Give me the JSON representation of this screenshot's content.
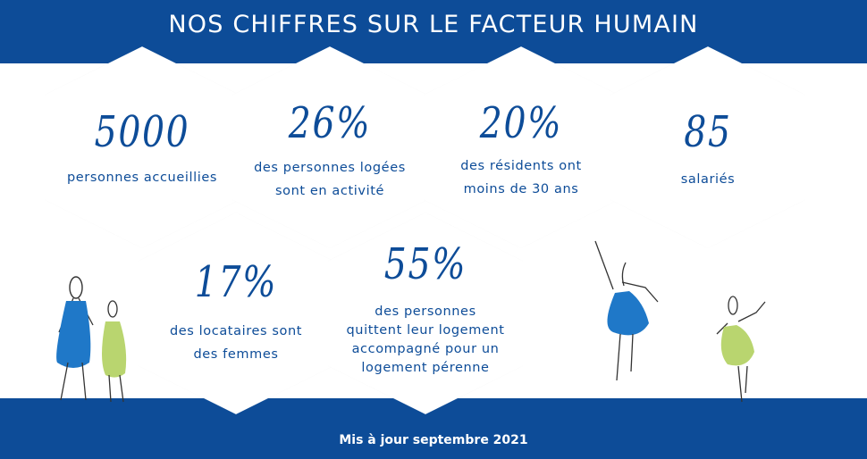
{
  "header": {
    "title": "NOS CHIFFRES SUR LE FACTEUR HUMAIN"
  },
  "stats": [
    {
      "value": "5000",
      "line1": "personnes accueillies",
      "line2": "",
      "line3": "",
      "line4": ""
    },
    {
      "value": "26%",
      "line1": "des personnes logées",
      "line2": "sont en activité",
      "line3": "",
      "line4": ""
    },
    {
      "value": "20%",
      "line1": "des résidents ont",
      "line2": "moins de 30 ans",
      "line3": "",
      "line4": ""
    },
    {
      "value": "85",
      "line1": "salariés",
      "line2": "",
      "line3": "",
      "line4": ""
    },
    {
      "value": "17%",
      "line1": "des locataires sont",
      "line2": "des femmes",
      "line3": "",
      "line4": ""
    },
    {
      "value": "55%",
      "line1": "des personnes",
      "line2": "quittent leur logement",
      "line3": "accompagné pour un",
      "line4": "logement pérenne"
    }
  ],
  "footer": {
    "text": "Mis à jour septembre 2021"
  },
  "colors": {
    "primary_blue": "#0d4c98",
    "figure_blue": "#1f78c8",
    "figure_green": "#b9d56f"
  }
}
